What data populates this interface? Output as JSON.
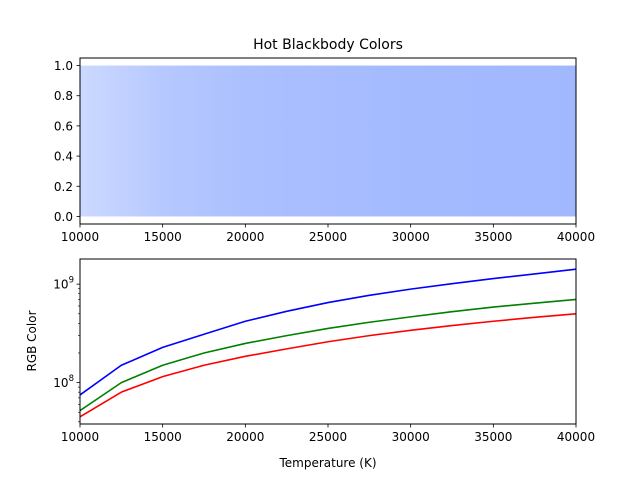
{
  "chart_data": [
    {
      "type": "heatmap",
      "title": "Hot Blackbody Colors",
      "xlabel": "",
      "ylabel": "",
      "xlim": [
        10000,
        40000
      ],
      "ylim": [
        -0.05,
        1.05
      ],
      "band_y": [
        0,
        1
      ],
      "x_ticks": [
        10000,
        15000,
        20000,
        25000,
        30000,
        35000,
        40000
      ],
      "x_tick_labels": [
        "10000",
        "15000",
        "20000",
        "25000",
        "30000",
        "35000",
        "40000"
      ],
      "y_ticks": [
        0.0,
        0.2,
        0.4,
        0.6,
        0.8,
        1.0
      ],
      "y_tick_labels": [
        "0.0",
        "0.2",
        "0.4",
        "0.6",
        "0.8",
        "1.0"
      ],
      "gradient_stops": [
        {
          "x": 10000,
          "color": "#ccd9ff"
        },
        {
          "x": 15000,
          "color": "#b6c8ff"
        },
        {
          "x": 20000,
          "color": "#abc0ff"
        },
        {
          "x": 25000,
          "color": "#a7bdff"
        },
        {
          "x": 30000,
          "color": "#a4baff"
        },
        {
          "x": 40000,
          "color": "#a1b8ff"
        }
      ],
      "grid": false
    },
    {
      "type": "line",
      "title": "",
      "xlabel": "Temperature (K)",
      "ylabel": "RGB Color",
      "xlim": [
        10000,
        40000
      ],
      "ylim": [
        38000000,
        1800000000
      ],
      "yscale": "log",
      "x_ticks": [
        10000,
        15000,
        20000,
        25000,
        30000,
        35000,
        40000
      ],
      "x_tick_labels": [
        "10000",
        "15000",
        "20000",
        "25000",
        "30000",
        "35000",
        "40000"
      ],
      "y_major_ticks": [
        100000000,
        1000000000
      ],
      "y_major_tick_labels": [
        {
          "base": "10",
          "exp": "8"
        },
        {
          "base": "10",
          "exp": "9"
        }
      ],
      "grid": false,
      "x": [
        10000,
        12500,
        15000,
        17500,
        20000,
        22500,
        25000,
        27500,
        30000,
        32500,
        35000,
        37500,
        40000
      ],
      "series": [
        {
          "color": "#0000ff",
          "values": [
            75000000,
            150000000,
            228000000,
            310000000,
            420000000,
            530000000,
            650000000,
            770000000,
            890000000,
            1010000000,
            1140000000,
            1270000000,
            1420000000
          ]
        },
        {
          "color": "#008000",
          "values": [
            52000000,
            100000000,
            150000000,
            200000000,
            250000000,
            300000000,
            355000000,
            410000000,
            465000000,
            525000000,
            585000000,
            640000000,
            700000000
          ]
        },
        {
          "color": "#ff0000",
          "values": [
            45000000,
            80000000,
            115000000,
            150000000,
            185000000,
            220000000,
            260000000,
            300000000,
            340000000,
            380000000,
            420000000,
            460000000,
            500000000
          ]
        }
      ]
    }
  ]
}
